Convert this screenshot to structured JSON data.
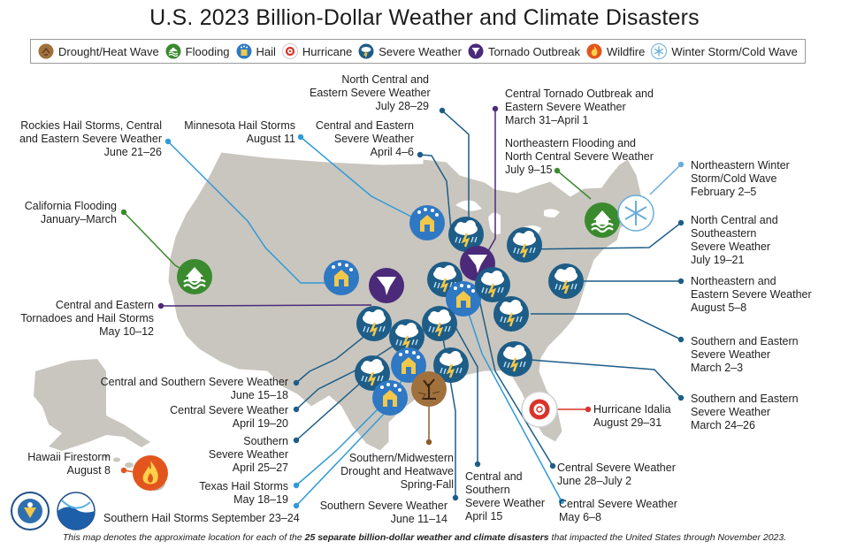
{
  "title": "U.S. 2023 Billion-Dollar Weather and Climate Disasters",
  "legend": [
    {
      "label": "Drought/Heat Wave",
      "icon": "drought-icon",
      "color": "#8b5a2b"
    },
    {
      "label": "Flooding",
      "icon": "flooding-icon",
      "color": "#3a8a2e"
    },
    {
      "label": "Hail",
      "icon": "hail-icon",
      "color": "#2f78c4"
    },
    {
      "label": "Hurricane",
      "icon": "hurricane-icon",
      "color": "#d9342b"
    },
    {
      "label": "Severe Weather",
      "icon": "severe-weather-icon",
      "color": "#1d5d87"
    },
    {
      "label": "Tornado Outbreak",
      "icon": "tornado-icon",
      "color": "#4b2a7a"
    },
    {
      "label": "Wildfire",
      "icon": "wildfire-icon",
      "color": "#e2561e"
    },
    {
      "label": "Winter Storm/Cold Wave",
      "icon": "winter-storm-icon",
      "color": "#6aaedb"
    }
  ],
  "events": [
    {
      "id": "rockies",
      "lines": [
        "Rockies Hail Storms, Central",
        "and Eastern Severe Weather",
        "June 21–26"
      ]
    },
    {
      "id": "mn-hail",
      "lines": [
        "Minnesota Hail Storms",
        "August 11"
      ]
    },
    {
      "id": "central-eastern-apr",
      "lines": [
        "Central and Eastern",
        "Severe Weather",
        "April 4–6"
      ]
    },
    {
      "id": "nc-eastern-jul",
      "lines": [
        "North Central and",
        "Eastern Severe Weather",
        "July 28–29"
      ]
    },
    {
      "id": "central-tornado",
      "lines": [
        "Central Tornado Outbreak and",
        "Eastern Severe Weather",
        "March 31–April 1"
      ]
    },
    {
      "id": "ne-flooding",
      "lines": [
        "Northeastern Flooding and",
        "North Central Severe Weather",
        "July 9–15"
      ]
    },
    {
      "id": "ne-winter",
      "lines": [
        "Northeastern Winter",
        "Storm/Cold Wave",
        "February 2–5"
      ]
    },
    {
      "id": "nc-se",
      "lines": [
        "North Central and",
        "Southeastern",
        "Severe Weather",
        "July 19–21"
      ]
    },
    {
      "id": "ne-eastern-aug",
      "lines": [
        "Northeastern and",
        "Eastern Severe Weather",
        "August 5–8"
      ]
    },
    {
      "id": "s-e-mar2",
      "lines": [
        "Southern and Eastern",
        "Severe Weather",
        "March 2–3"
      ]
    },
    {
      "id": "s-e-mar24",
      "lines": [
        "Southern and Eastern",
        "Severe Weather",
        "March 24–26"
      ]
    },
    {
      "id": "california",
      "lines": [
        "California Flooding",
        "January–March"
      ]
    },
    {
      "id": "ce-tornado-hail",
      "lines": [
        "Central and Eastern",
        "Tornadoes and Hail Storms",
        "May 10–12"
      ]
    },
    {
      "id": "cs-jun15",
      "lines": [
        "Central and Southern Severe Weather",
        "June 15–18"
      ]
    },
    {
      "id": "central-apr19",
      "lines": [
        "Central Severe Weather",
        "April 19–20"
      ]
    },
    {
      "id": "southern-apr25",
      "lines": [
        "Southern",
        "Severe Weather",
        "April 25–27"
      ]
    },
    {
      "id": "texas-hail",
      "lines": [
        "Texas Hail Storms",
        "May 18–19"
      ]
    },
    {
      "id": "southern-hail",
      "lines": [
        "Southern Hail Storms September 23–24"
      ]
    },
    {
      "id": "hawaii",
      "lines": [
        "Hawaii Firestorm",
        "August 8"
      ]
    },
    {
      "id": "drought",
      "lines": [
        "Southern/Midwestern",
        "Drought and Heatwave",
        "Spring-Fall"
      ]
    },
    {
      "id": "southern-jun11",
      "lines": [
        "Southern Severe Weather",
        "June 11–14"
      ]
    },
    {
      "id": "cs-apr15",
      "lines": [
        "Central and",
        "Southern",
        "Severe Weather",
        "April 15"
      ]
    },
    {
      "id": "central-may6",
      "lines": [
        "Central Severe Weather",
        "May 6–8"
      ]
    },
    {
      "id": "central-jun28",
      "lines": [
        "Central Severe Weather",
        "June 28–July 2"
      ]
    },
    {
      "id": "idalia",
      "lines": [
        "Hurricane Idalia",
        "August 29–31"
      ]
    }
  ],
  "footnote": {
    "prefix": "This map denotes the approximate location for each of the ",
    "bold": "25 separate billion-dollar weather and climate disasters",
    "suffix": " that impacted the United States through November 2023."
  },
  "logos": [
    {
      "name": "doc-seal",
      "text": "DEPARTMENT OF COMMERCE"
    },
    {
      "name": "noaa-logo",
      "text": "NOAA"
    }
  ]
}
